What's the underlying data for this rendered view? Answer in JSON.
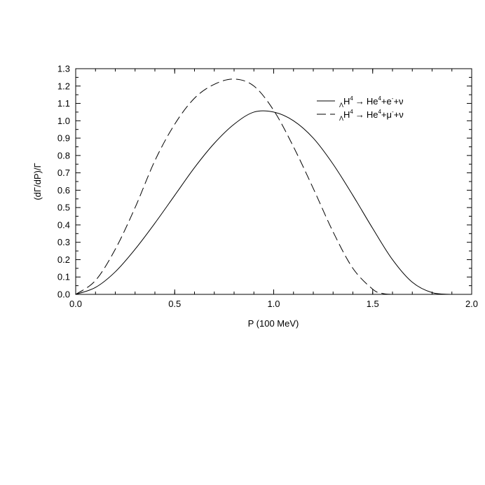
{
  "chart_data": {
    "type": "line",
    "xlabel": "P (100 MeV)",
    "ylabel": "(dΓ/dP)/Γ",
    "xlim": [
      0.0,
      2.0
    ],
    "ylim": [
      0.0,
      1.3
    ],
    "x_ticks": [
      "0.0",
      "0.5",
      "1.0",
      "1.5",
      "2.0"
    ],
    "y_ticks": [
      "0.0",
      "0.1",
      "0.2",
      "0.3",
      "0.4",
      "0.5",
      "0.6",
      "0.7",
      "0.8",
      "0.9",
      "1.0",
      "1.1",
      "1.2",
      "1.3"
    ],
    "grid": false,
    "legend_position": "top-right",
    "colors": {
      "line": "#000000"
    },
    "series": [
      {
        "name": "ΛH4 → He4+e-+ν",
        "legend": {
          "prefix_sub": "Λ",
          "base": "H",
          "sup1": "4",
          "arrow": "→",
          "mid": "He",
          "sup2": "4",
          "lepton_pre": "+e",
          "sup3": "-",
          "tail": "+ν"
        },
        "style": "solid",
        "x": [
          0.0,
          0.1,
          0.2,
          0.3,
          0.4,
          0.5,
          0.6,
          0.7,
          0.8,
          0.9,
          1.0,
          1.1,
          1.2,
          1.3,
          1.4,
          1.5,
          1.6,
          1.7,
          1.8,
          1.9
        ],
        "values": [
          0.0,
          0.04,
          0.13,
          0.26,
          0.41,
          0.57,
          0.73,
          0.87,
          0.98,
          1.05,
          1.05,
          1.0,
          0.9,
          0.75,
          0.57,
          0.38,
          0.2,
          0.07,
          0.01,
          0.0
        ]
      },
      {
        "name": "ΛH4 → He4+μ-+ν",
        "legend": {
          "prefix_sub": "Λ",
          "base": "H",
          "sup1": "4",
          "arrow": "→",
          "mid": "He",
          "sup2": "4",
          "lepton_pre": "+μ",
          "sup3": "-",
          "tail": "+ν"
        },
        "style": "dashed",
        "x": [
          0.0,
          0.1,
          0.2,
          0.3,
          0.4,
          0.5,
          0.6,
          0.7,
          0.8,
          0.9,
          1.0,
          1.1,
          1.2,
          1.3,
          1.4,
          1.5,
          1.55,
          1.6
        ],
        "values": [
          0.0,
          0.08,
          0.26,
          0.5,
          0.77,
          0.98,
          1.13,
          1.21,
          1.24,
          1.2,
          1.06,
          0.85,
          0.61,
          0.36,
          0.15,
          0.03,
          0.005,
          0.0
        ]
      }
    ]
  }
}
